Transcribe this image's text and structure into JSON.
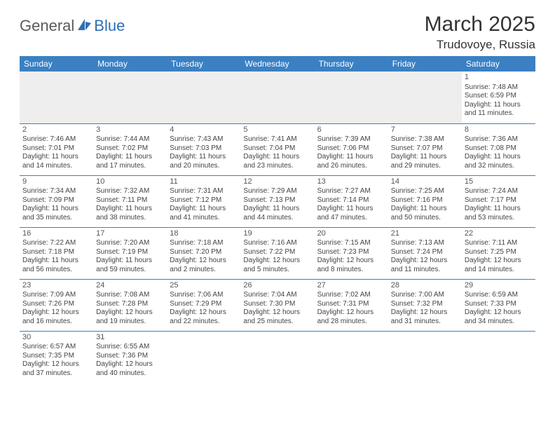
{
  "logo": {
    "general": "General",
    "blue": "Blue"
  },
  "title": "March 2025",
  "location": "Trudovoye, Russia",
  "colors": {
    "header_bg": "#3a80c3",
    "header_text": "#ffffff",
    "cell_border": "#3a80c3",
    "empty_bg": "#eeeeee",
    "logo_gray": "#5a5a5a",
    "logo_blue": "#2d6fb5"
  },
  "weekdays": [
    "Sunday",
    "Monday",
    "Tuesday",
    "Wednesday",
    "Thursday",
    "Friday",
    "Saturday"
  ],
  "weeks": [
    [
      null,
      null,
      null,
      null,
      null,
      null,
      {
        "n": "1",
        "sr": "Sunrise: 7:48 AM",
        "ss": "Sunset: 6:59 PM",
        "dl": "Daylight: 11 hours and 11 minutes."
      }
    ],
    [
      {
        "n": "2",
        "sr": "Sunrise: 7:46 AM",
        "ss": "Sunset: 7:01 PM",
        "dl": "Daylight: 11 hours and 14 minutes."
      },
      {
        "n": "3",
        "sr": "Sunrise: 7:44 AM",
        "ss": "Sunset: 7:02 PM",
        "dl": "Daylight: 11 hours and 17 minutes."
      },
      {
        "n": "4",
        "sr": "Sunrise: 7:43 AM",
        "ss": "Sunset: 7:03 PM",
        "dl": "Daylight: 11 hours and 20 minutes."
      },
      {
        "n": "5",
        "sr": "Sunrise: 7:41 AM",
        "ss": "Sunset: 7:04 PM",
        "dl": "Daylight: 11 hours and 23 minutes."
      },
      {
        "n": "6",
        "sr": "Sunrise: 7:39 AM",
        "ss": "Sunset: 7:06 PM",
        "dl": "Daylight: 11 hours and 26 minutes."
      },
      {
        "n": "7",
        "sr": "Sunrise: 7:38 AM",
        "ss": "Sunset: 7:07 PM",
        "dl": "Daylight: 11 hours and 29 minutes."
      },
      {
        "n": "8",
        "sr": "Sunrise: 7:36 AM",
        "ss": "Sunset: 7:08 PM",
        "dl": "Daylight: 11 hours and 32 minutes."
      }
    ],
    [
      {
        "n": "9",
        "sr": "Sunrise: 7:34 AM",
        "ss": "Sunset: 7:09 PM",
        "dl": "Daylight: 11 hours and 35 minutes."
      },
      {
        "n": "10",
        "sr": "Sunrise: 7:32 AM",
        "ss": "Sunset: 7:11 PM",
        "dl": "Daylight: 11 hours and 38 minutes."
      },
      {
        "n": "11",
        "sr": "Sunrise: 7:31 AM",
        "ss": "Sunset: 7:12 PM",
        "dl": "Daylight: 11 hours and 41 minutes."
      },
      {
        "n": "12",
        "sr": "Sunrise: 7:29 AM",
        "ss": "Sunset: 7:13 PM",
        "dl": "Daylight: 11 hours and 44 minutes."
      },
      {
        "n": "13",
        "sr": "Sunrise: 7:27 AM",
        "ss": "Sunset: 7:14 PM",
        "dl": "Daylight: 11 hours and 47 minutes."
      },
      {
        "n": "14",
        "sr": "Sunrise: 7:25 AM",
        "ss": "Sunset: 7:16 PM",
        "dl": "Daylight: 11 hours and 50 minutes."
      },
      {
        "n": "15",
        "sr": "Sunrise: 7:24 AM",
        "ss": "Sunset: 7:17 PM",
        "dl": "Daylight: 11 hours and 53 minutes."
      }
    ],
    [
      {
        "n": "16",
        "sr": "Sunrise: 7:22 AM",
        "ss": "Sunset: 7:18 PM",
        "dl": "Daylight: 11 hours and 56 minutes."
      },
      {
        "n": "17",
        "sr": "Sunrise: 7:20 AM",
        "ss": "Sunset: 7:19 PM",
        "dl": "Daylight: 11 hours and 59 minutes."
      },
      {
        "n": "18",
        "sr": "Sunrise: 7:18 AM",
        "ss": "Sunset: 7:20 PM",
        "dl": "Daylight: 12 hours and 2 minutes."
      },
      {
        "n": "19",
        "sr": "Sunrise: 7:16 AM",
        "ss": "Sunset: 7:22 PM",
        "dl": "Daylight: 12 hours and 5 minutes."
      },
      {
        "n": "20",
        "sr": "Sunrise: 7:15 AM",
        "ss": "Sunset: 7:23 PM",
        "dl": "Daylight: 12 hours and 8 minutes."
      },
      {
        "n": "21",
        "sr": "Sunrise: 7:13 AM",
        "ss": "Sunset: 7:24 PM",
        "dl": "Daylight: 12 hours and 11 minutes."
      },
      {
        "n": "22",
        "sr": "Sunrise: 7:11 AM",
        "ss": "Sunset: 7:25 PM",
        "dl": "Daylight: 12 hours and 14 minutes."
      }
    ],
    [
      {
        "n": "23",
        "sr": "Sunrise: 7:09 AM",
        "ss": "Sunset: 7:26 PM",
        "dl": "Daylight: 12 hours and 16 minutes."
      },
      {
        "n": "24",
        "sr": "Sunrise: 7:08 AM",
        "ss": "Sunset: 7:28 PM",
        "dl": "Daylight: 12 hours and 19 minutes."
      },
      {
        "n": "25",
        "sr": "Sunrise: 7:06 AM",
        "ss": "Sunset: 7:29 PM",
        "dl": "Daylight: 12 hours and 22 minutes."
      },
      {
        "n": "26",
        "sr": "Sunrise: 7:04 AM",
        "ss": "Sunset: 7:30 PM",
        "dl": "Daylight: 12 hours and 25 minutes."
      },
      {
        "n": "27",
        "sr": "Sunrise: 7:02 AM",
        "ss": "Sunset: 7:31 PM",
        "dl": "Daylight: 12 hours and 28 minutes."
      },
      {
        "n": "28",
        "sr": "Sunrise: 7:00 AM",
        "ss": "Sunset: 7:32 PM",
        "dl": "Daylight: 12 hours and 31 minutes."
      },
      {
        "n": "29",
        "sr": "Sunrise: 6:59 AM",
        "ss": "Sunset: 7:33 PM",
        "dl": "Daylight: 12 hours and 34 minutes."
      }
    ],
    [
      {
        "n": "30",
        "sr": "Sunrise: 6:57 AM",
        "ss": "Sunset: 7:35 PM",
        "dl": "Daylight: 12 hours and 37 minutes."
      },
      {
        "n": "31",
        "sr": "Sunrise: 6:55 AM",
        "ss": "Sunset: 7:36 PM",
        "dl": "Daylight: 12 hours and 40 minutes."
      },
      null,
      null,
      null,
      null,
      null
    ]
  ]
}
